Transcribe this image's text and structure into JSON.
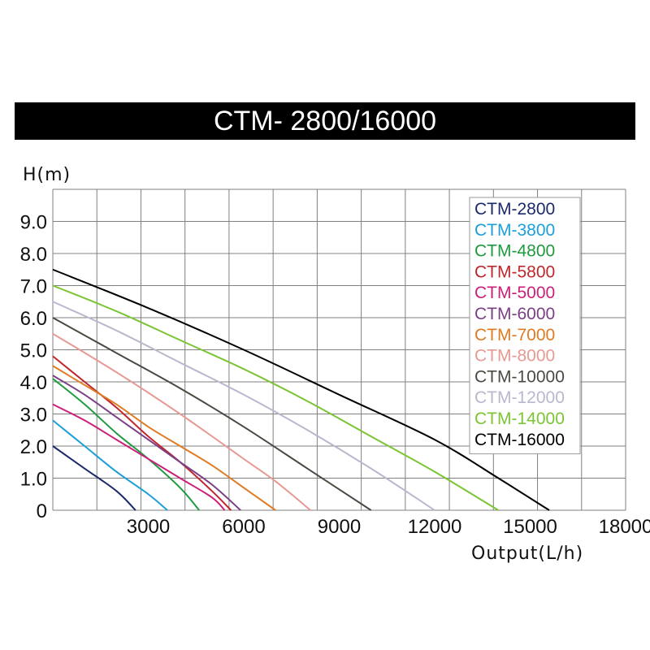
{
  "title": "CTM- 2800/16000",
  "chart_data": {
    "type": "line",
    "title": "CTM- 2800/16000",
    "ylabel": "H(m)",
    "xlabel": "Output(L/h)",
    "xlim": [
      0,
      18000
    ],
    "ylim": [
      0,
      10
    ],
    "x_ticks": [
      "3000",
      "6000",
      "9000",
      "12000",
      "15000",
      "18000"
    ],
    "y_ticks": [
      "0",
      "1.0",
      "2.0",
      "3.0",
      "4.0",
      "5.0",
      "6.0",
      "7.0",
      "8.0",
      "9.0"
    ],
    "grid": true,
    "legend_position": "top-right",
    "series": [
      {
        "name": "CTM-2800",
        "color": "#1b2a6b",
        "x": [
          0,
          1000,
          2000,
          2600
        ],
        "y": [
          2.0,
          1.3,
          0.6,
          0
        ]
      },
      {
        "name": "CTM-3800",
        "color": "#1c9fd9",
        "x": [
          0,
          1000,
          2000,
          3000,
          3600
        ],
        "y": [
          2.8,
          2.0,
          1.2,
          0.5,
          0
        ]
      },
      {
        "name": "CTM-4800",
        "color": "#1f9a3f",
        "x": [
          0,
          1000,
          2000,
          3000,
          4000,
          4600
        ],
        "y": [
          4.1,
          3.3,
          2.4,
          1.6,
          0.7,
          0
        ]
      },
      {
        "name": "CTM-5800",
        "color": "#c0272d",
        "x": [
          0,
          1000,
          2000,
          3000,
          4000,
          5000,
          5600
        ],
        "y": [
          4.8,
          4.0,
          3.2,
          2.3,
          1.5,
          0.6,
          0
        ]
      },
      {
        "name": "CTM-5000",
        "color": "#cc1f79",
        "x": [
          0,
          1000,
          2000,
          3000,
          4000,
          5000,
          5400
        ],
        "y": [
          3.3,
          2.8,
          2.2,
          1.6,
          1.0,
          0.4,
          0
        ]
      },
      {
        "name": "CTM-6000",
        "color": "#7b3f86",
        "x": [
          0,
          1000,
          2000,
          3000,
          4000,
          5000,
          5900
        ],
        "y": [
          4.2,
          3.6,
          2.9,
          2.2,
          1.5,
          0.8,
          0
        ]
      },
      {
        "name": "CTM-7000",
        "color": "#e07b22",
        "x": [
          0,
          1000,
          2000,
          3000,
          4000,
          5000,
          6000,
          7000
        ],
        "y": [
          4.5,
          3.9,
          3.3,
          2.6,
          2.0,
          1.4,
          0.7,
          0
        ]
      },
      {
        "name": "CTM-8000",
        "color": "#e79a94",
        "x": [
          0,
          2000,
          4000,
          6000,
          7000,
          8100
        ],
        "y": [
          5.5,
          4.3,
          3.0,
          1.6,
          0.9,
          0
        ]
      },
      {
        "name": "CTM-10000",
        "color": "#4a4a42",
        "x": [
          0,
          2000,
          4000,
          6000,
          8000,
          10000
        ],
        "y": [
          6.0,
          4.9,
          3.8,
          2.6,
          1.3,
          0
        ]
      },
      {
        "name": "CTM-12000",
        "color": "#b8b8cf",
        "x": [
          0,
          2000,
          4000,
          6000,
          8000,
          10000,
          12000
        ],
        "y": [
          6.5,
          5.6,
          4.6,
          3.6,
          2.5,
          1.3,
          0
        ]
      },
      {
        "name": "CTM-14000",
        "color": "#7bc433",
        "x": [
          0,
          2000,
          4000,
          6000,
          8000,
          10000,
          12000,
          14000
        ],
        "y": [
          7.0,
          6.2,
          5.3,
          4.4,
          3.4,
          2.3,
          1.2,
          0
        ]
      },
      {
        "name": "CTM-16000",
        "color": "#000000",
        "x": [
          0,
          3000,
          6000,
          9000,
          12000,
          14000,
          15600
        ],
        "y": [
          7.5,
          6.3,
          5.0,
          3.6,
          2.2,
          1.0,
          0
        ]
      }
    ]
  }
}
